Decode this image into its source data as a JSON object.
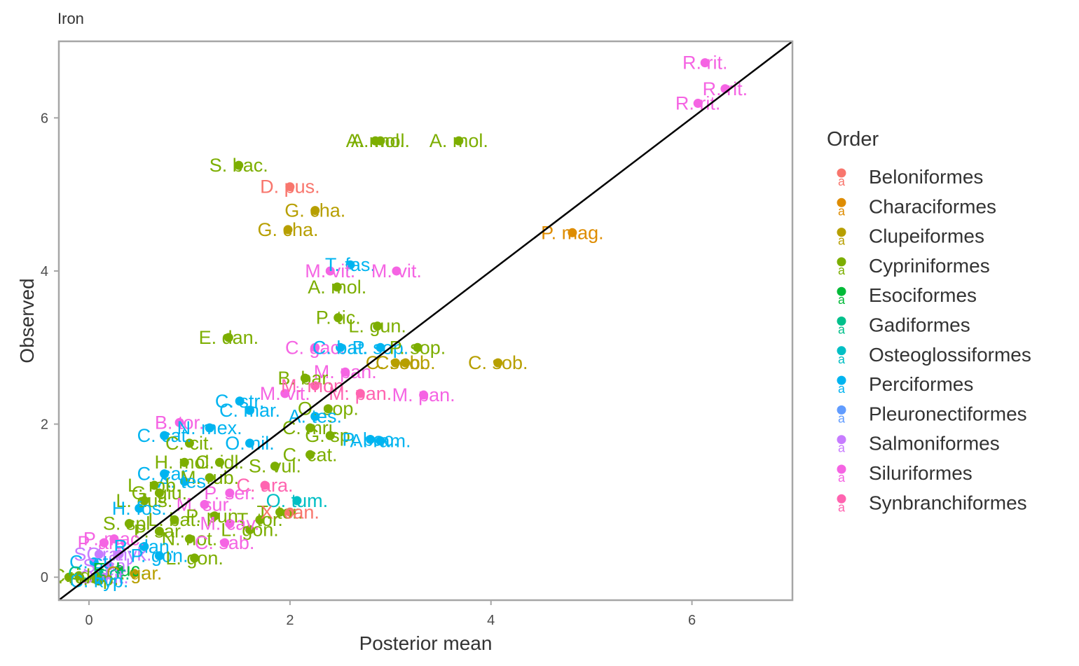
{
  "chart_data": {
    "type": "scatter",
    "title": "Iron",
    "xlabel": "Posterior mean",
    "ylabel": "Observed",
    "xlim": [
      -0.3,
      7.0
    ],
    "ylim": [
      -0.3,
      7.0
    ],
    "x_ticks": [
      "0",
      "2",
      "4",
      "6"
    ],
    "y_ticks": [
      "0",
      "2",
      "4",
      "6"
    ],
    "x_tick_values": [
      0,
      2,
      4,
      6
    ],
    "y_tick_values": [
      0,
      2,
      4,
      6
    ],
    "grid": false,
    "reference_line": "y = x",
    "legend": {
      "title": "Order",
      "position": "right",
      "key_glyph": "a",
      "entries": [
        {
          "label": "Beloniformes",
          "color": "#F8766D"
        },
        {
          "label": "Characiformes",
          "color": "#DE8C00"
        },
        {
          "label": "Clupeiformes",
          "color": "#B79F00"
        },
        {
          "label": "Cypriniformes",
          "color": "#7CAE00"
        },
        {
          "label": "Esociformes",
          "color": "#00BA38"
        },
        {
          "label": "Gadiformes",
          "color": "#00C08B"
        },
        {
          "label": "Osteoglossiformes",
          "color": "#00BFC4"
        },
        {
          "label": "Perciformes",
          "color": "#00B4F0"
        },
        {
          "label": "Pleuronectiformes",
          "color": "#619CFF"
        },
        {
          "label": "Salmoniformes",
          "color": "#C77CFF"
        },
        {
          "label": "Siluriformes",
          "color": "#F564E3"
        },
        {
          "label": "Synbranchiformes",
          "color": "#FF64B0"
        }
      ]
    },
    "points": [
      {
        "x": 6.13,
        "y": 6.72,
        "label": "R. rit.",
        "order": "Siluriformes"
      },
      {
        "x": 6.33,
        "y": 6.38,
        "label": "R. rit.",
        "order": "Siluriformes"
      },
      {
        "x": 6.06,
        "y": 6.19,
        "label": "R. rit.",
        "order": "Siluriformes"
      },
      {
        "x": 2.85,
        "y": 5.7,
        "label": "A. mol.",
        "order": "Cypriniformes"
      },
      {
        "x": 2.9,
        "y": 5.7,
        "label": "A. mol.",
        "order": "Cypriniformes"
      },
      {
        "x": 3.68,
        "y": 5.7,
        "label": "A. mol.",
        "order": "Cypriniformes"
      },
      {
        "x": 1.49,
        "y": 5.38,
        "label": "S. bac.",
        "order": "Cypriniformes"
      },
      {
        "x": 2.0,
        "y": 5.1,
        "label": "D. pus.",
        "order": "Beloniformes"
      },
      {
        "x": 2.25,
        "y": 4.79,
        "label": "G. cha.",
        "order": "Clupeiformes"
      },
      {
        "x": 1.98,
        "y": 4.54,
        "label": "G. cha.",
        "order": "Clupeiformes"
      },
      {
        "x": 4.81,
        "y": 4.5,
        "label": "P. mag.",
        "order": "Characiformes"
      },
      {
        "x": 2.6,
        "y": 4.08,
        "label": "T. fas.",
        "order": "Perciformes"
      },
      {
        "x": 2.4,
        "y": 4.0,
        "label": "M. vit.",
        "order": "Siluriformes"
      },
      {
        "x": 3.06,
        "y": 4.0,
        "label": "M. vit.",
        "order": "Siluriformes"
      },
      {
        "x": 2.47,
        "y": 3.79,
        "label": "A. mol.",
        "order": "Cypriniformes"
      },
      {
        "x": 2.48,
        "y": 3.39,
        "label": "P. tic.",
        "order": "Cypriniformes"
      },
      {
        "x": 2.87,
        "y": 3.28,
        "label": "L. gun.",
        "order": "Cypriniformes"
      },
      {
        "x": 1.39,
        "y": 3.13,
        "label": "E. dan.",
        "order": "Cypriniformes"
      },
      {
        "x": 2.25,
        "y": 3.0,
        "label": "C. gac.",
        "order": "Siluriformes"
      },
      {
        "x": 2.5,
        "y": 3.0,
        "label": "C. bat.",
        "order": "Perciformes"
      },
      {
        "x": 2.9,
        "y": 3.0,
        "label": "P. sop.",
        "order": "Perciformes"
      },
      {
        "x": 3.27,
        "y": 3.0,
        "label": "P. sop.",
        "order": "Cypriniformes"
      },
      {
        "x": 4.07,
        "y": 2.8,
        "label": "C. sob.",
        "order": "Clupeiformes"
      },
      {
        "x": 3.05,
        "y": 2.8,
        "label": "C. sob.",
        "order": "Clupeiformes"
      },
      {
        "x": 3.15,
        "y": 2.8,
        "label": "C. sob.",
        "order": "Clupeiformes"
      },
      {
        "x": 2.55,
        "y": 2.68,
        "label": "M. pan.",
        "order": "Siluriformes"
      },
      {
        "x": 2.15,
        "y": 2.6,
        "label": "B. bar.",
        "order": "Cypriniformes"
      },
      {
        "x": 2.25,
        "y": 2.5,
        "label": "M. mon.",
        "order": "Synbranchiformes"
      },
      {
        "x": 3.33,
        "y": 2.38,
        "label": "M. pan.",
        "order": "Siluriformes"
      },
      {
        "x": 2.7,
        "y": 2.4,
        "label": "M. pan.",
        "order": "Synbranchiformes"
      },
      {
        "x": 1.95,
        "y": 2.4,
        "label": "M. vit.",
        "order": "Siluriformes"
      },
      {
        "x": 1.5,
        "y": 2.3,
        "label": "C. str.",
        "order": "Perciformes"
      },
      {
        "x": 2.38,
        "y": 2.2,
        "label": "O. sop.",
        "order": "Cypriniformes"
      },
      {
        "x": 1.6,
        "y": 2.18,
        "label": "C. mar.",
        "order": "Perciformes"
      },
      {
        "x": 2.25,
        "y": 2.1,
        "label": "A. tes.",
        "order": "Perciformes"
      },
      {
        "x": 0.9,
        "y": 2.02,
        "label": "B. tor.",
        "order": "Siluriformes"
      },
      {
        "x": 2.2,
        "y": 1.95,
        "label": "C. mri.",
        "order": "Cypriniformes"
      },
      {
        "x": 1.2,
        "y": 1.95,
        "label": "N. mex.",
        "order": "Perciformes"
      },
      {
        "x": 0.75,
        "y": 1.85,
        "label": "C. cat.",
        "order": "Perciformes"
      },
      {
        "x": 2.4,
        "y": 1.85,
        "label": "G. sp.",
        "order": "Cypriniformes"
      },
      {
        "x": 2.8,
        "y": 1.8,
        "label": "P. bac.",
        "order": "Perciformes"
      },
      {
        "x": 2.9,
        "y": 1.78,
        "label": "A. ram.",
        "order": "Perciformes"
      },
      {
        "x": 1.0,
        "y": 1.75,
        "label": "C. cit.",
        "order": "Cypriniformes"
      },
      {
        "x": 1.6,
        "y": 1.75,
        "label": "O. nil.",
        "order": "Perciformes"
      },
      {
        "x": 2.2,
        "y": 1.6,
        "label": "C. cat.",
        "order": "Cypriniformes"
      },
      {
        "x": 0.95,
        "y": 1.5,
        "label": "H. mol.",
        "order": "Cypriniformes"
      },
      {
        "x": 1.3,
        "y": 1.5,
        "label": "C. idl.",
        "order": "Cypriniformes"
      },
      {
        "x": 1.85,
        "y": 1.45,
        "label": "S. vul.",
        "order": "Cypriniformes"
      },
      {
        "x": 0.75,
        "y": 1.35,
        "label": "C. car.",
        "order": "Perciformes"
      },
      {
        "x": 1.2,
        "y": 1.3,
        "label": "M. rub.",
        "order": "Cypriniformes"
      },
      {
        "x": 0.95,
        "y": 1.25,
        "label": "A. tes.",
        "order": "Perciformes"
      },
      {
        "x": 1.75,
        "y": 1.2,
        "label": "C. ara.",
        "order": "Synbranchiformes"
      },
      {
        "x": 0.65,
        "y": 1.2,
        "label": "L. rob.",
        "order": "Cypriniformes"
      },
      {
        "x": 0.7,
        "y": 1.1,
        "label": "G. giu.",
        "order": "Cypriniformes"
      },
      {
        "x": 1.4,
        "y": 1.1,
        "label": "P. ser.",
        "order": "Siluriformes"
      },
      {
        "x": 2.07,
        "y": 1.0,
        "label": "O. tum.",
        "order": "Osteoglossiformes"
      },
      {
        "x": 0.55,
        "y": 1.0,
        "label": "L. dus.",
        "order": "Cypriniformes"
      },
      {
        "x": 1.15,
        "y": 0.95,
        "label": "M. sur.",
        "order": "Siluriformes"
      },
      {
        "x": 0.5,
        "y": 0.9,
        "label": "H. fos.",
        "order": "Perciformes"
      },
      {
        "x": 1.9,
        "y": 0.85,
        "label": "T. tor.",
        "order": "Cypriniformes"
      },
      {
        "x": 2.0,
        "y": 0.85,
        "label": "X. can.",
        "order": "Beloniformes"
      },
      {
        "x": 1.25,
        "y": 0.8,
        "label": "P. pun.",
        "order": "Cypriniformes"
      },
      {
        "x": 1.7,
        "y": 0.75,
        "label": "T. tor.",
        "order": "Cypriniformes"
      },
      {
        "x": 0.85,
        "y": 0.75,
        "label": "L. bat.",
        "order": "Cypriniformes"
      },
      {
        "x": 1.4,
        "y": 0.7,
        "label": "M. cav.",
        "order": "Siluriformes"
      },
      {
        "x": 0.4,
        "y": 0.7,
        "label": "S. spl.",
        "order": "Cypriniformes"
      },
      {
        "x": 1.6,
        "y": 0.62,
        "label": "L. gon.",
        "order": "Cypriniformes"
      },
      {
        "x": 0.7,
        "y": 0.6,
        "label": "P. sar.",
        "order": "Cypriniformes"
      },
      {
        "x": 0.25,
        "y": 0.5,
        "label": "P. mac.",
        "order": "Siluriformes"
      },
      {
        "x": 1.0,
        "y": 0.5,
        "label": "N. not.",
        "order": "Cypriniformes"
      },
      {
        "x": 1.35,
        "y": 0.45,
        "label": "C. sab.",
        "order": "Siluriformes"
      },
      {
        "x": 0.15,
        "y": 0.45,
        "label": "P. ara.",
        "order": "Siluriformes"
      },
      {
        "x": 0.55,
        "y": 0.4,
        "label": "R. dan.",
        "order": "Perciformes"
      },
      {
        "x": 0.1,
        "y": 0.3,
        "label": "S. tra.",
        "order": "Salmoniformes"
      },
      {
        "x": 0.3,
        "y": 0.3,
        "label": "O. myk.",
        "order": "Salmoniformes"
      },
      {
        "x": 0.7,
        "y": 0.28,
        "label": "P. gon.",
        "order": "Perciformes"
      },
      {
        "x": 1.05,
        "y": 0.25,
        "label": "L. gon.",
        "order": "Cypriniformes"
      },
      {
        "x": 0.05,
        "y": 0.2,
        "label": "C. str.",
        "order": "Perciformes"
      },
      {
        "x": 0.2,
        "y": 0.15,
        "label": "S. sal.",
        "order": "Salmoniformes"
      },
      {
        "x": 0.3,
        "y": 0.1,
        "label": "E. luc.",
        "order": "Esociformes"
      },
      {
        "x": 0.45,
        "y": 0.05,
        "label": "C. gar.",
        "order": "Clupeiformes"
      },
      {
        "x": 0.1,
        "y": 0.05,
        "label": "G. mor.",
        "order": "Gadiformes"
      },
      {
        "x": 0.15,
        "y": 0.0,
        "label": "O. kit.",
        "order": "Salmoniformes"
      },
      {
        "x": -0.1,
        "y": 0.02,
        "label": "C. ide.",
        "order": "Cypriniformes"
      },
      {
        "x": 0.05,
        "y": -0.02,
        "label": "H. sp.",
        "order": "Cypriniformes"
      },
      {
        "x": 0.1,
        "y": -0.05,
        "label": "C. kyp.",
        "order": "Perciformes"
      },
      {
        "x": -0.2,
        "y": 0.0,
        "label": "L. ro.",
        "order": "Cypriniformes"
      }
    ]
  }
}
